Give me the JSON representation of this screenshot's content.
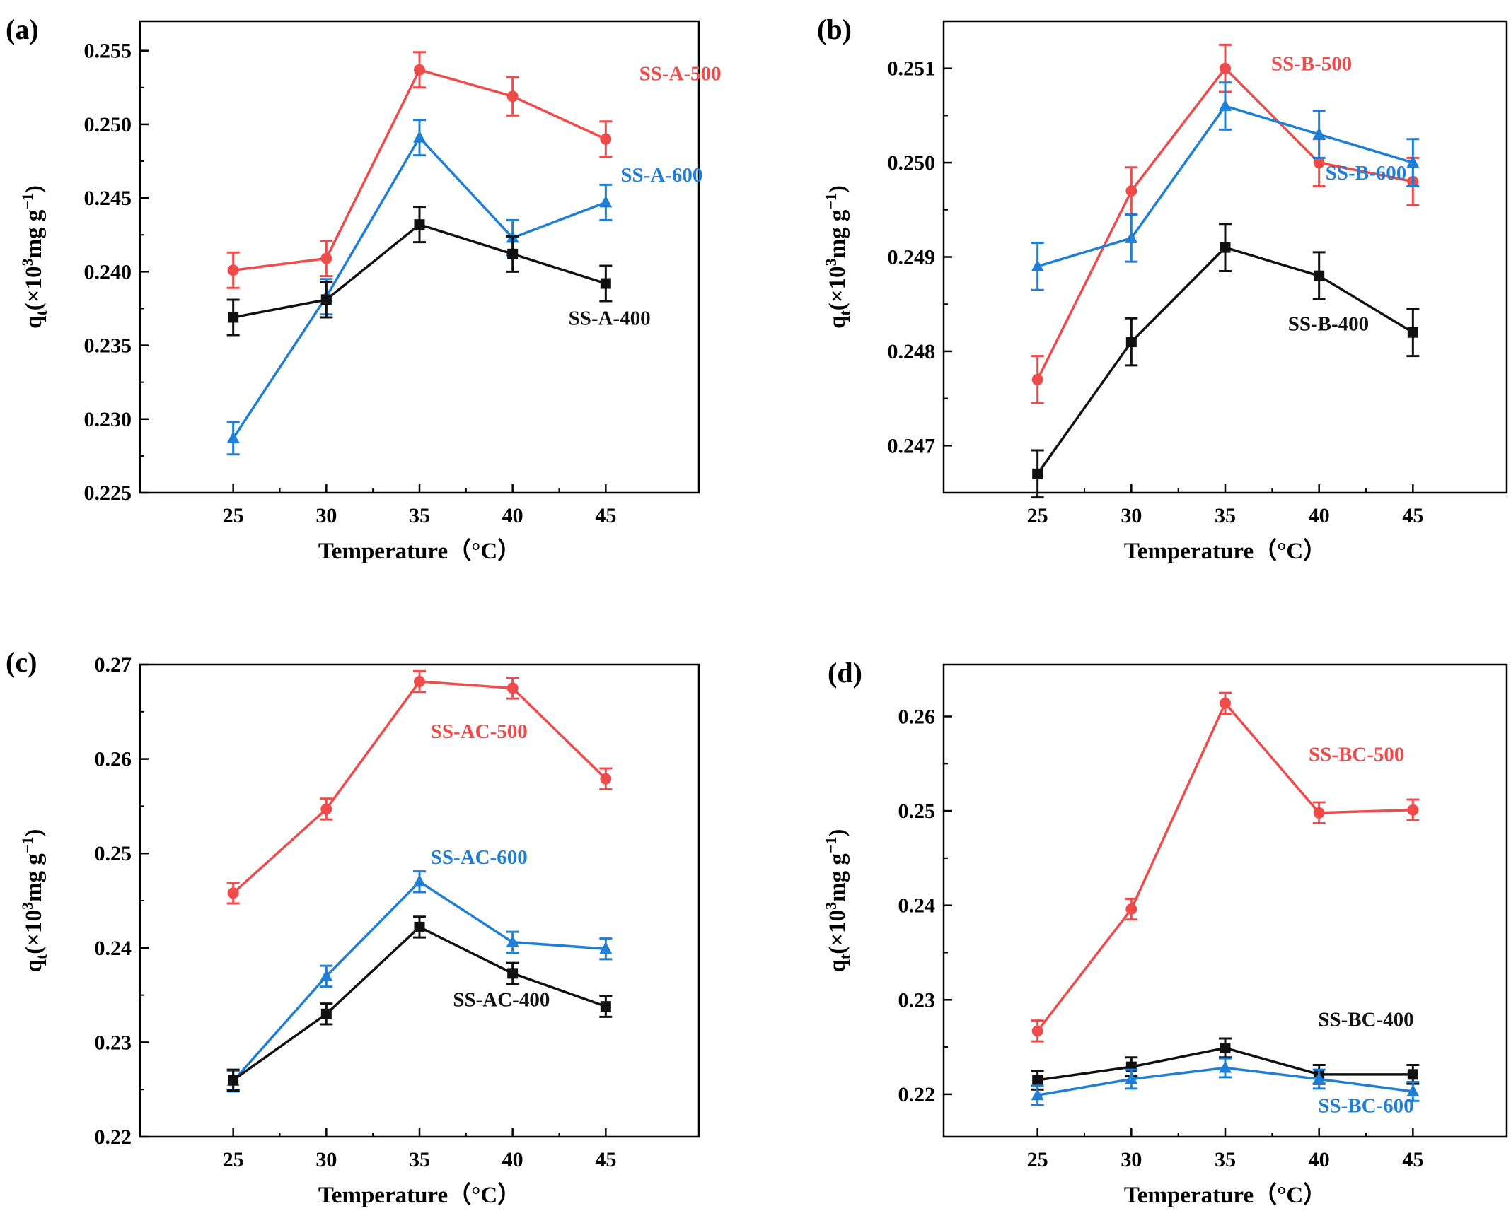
{
  "figure": {
    "type": "multi-panel line chart with error bars"
  },
  "colors": {
    "red": "#f04b4b",
    "blue": "#1f7fd6",
    "black": "#111111"
  },
  "chart_data": [
    {
      "panel": "(a)",
      "type": "line",
      "xlabel": "Temperature（°C）",
      "ylabel_main": "q",
      "ylabel_sub": "t",
      "ylabel_rest": "(×10",
      "ylabel_sup": "3",
      "ylabel_unit": "mg g",
      "ylabel_unit_sup": "−1",
      "ylabel_close": ")",
      "x": [
        25,
        30,
        35,
        40,
        45
      ],
      "xlim": [
        20,
        50
      ],
      "ylim": [
        0.225,
        0.257
      ],
      "yticks": [
        "0.225",
        "0.230",
        "0.235",
        "0.240",
        "0.245",
        "0.250",
        "0.255"
      ],
      "xticks": [
        "25",
        "30",
        "35",
        "40",
        "45"
      ],
      "series": [
        {
          "name": "SS-A-500",
          "color": "red",
          "marker": "circle",
          "values": [
            0.2401,
            0.2409,
            0.2537,
            0.2519,
            0.249
          ],
          "errors": [
            0.0012,
            0.0012,
            0.0012,
            0.0013,
            0.0012
          ],
          "label_at": [
            49.0,
            0.253
          ]
        },
        {
          "name": "SS-A-600",
          "color": "blue",
          "marker": "triangle",
          "values": [
            0.2287,
            0.2383,
            0.2491,
            0.2423,
            0.2447
          ],
          "errors": [
            0.0011,
            0.0012,
            0.0012,
            0.0012,
            0.0012
          ],
          "label_at": [
            48.0,
            0.2461
          ]
        },
        {
          "name": "SS-A-400",
          "color": "black",
          "marker": "square",
          "values": [
            0.2369,
            0.2381,
            0.2432,
            0.2412,
            0.2392
          ],
          "errors": [
            0.0012,
            0.0012,
            0.0012,
            0.0012,
            0.0012
          ],
          "label_at": [
            45.2,
            0.2364
          ]
        }
      ]
    },
    {
      "panel": "(b)",
      "type": "line",
      "xlabel": "Temperature（°C）",
      "ylabel_main": "q",
      "ylabel_sub": "t",
      "ylabel_rest": "(×10",
      "ylabel_sup": "3",
      "ylabel_unit": "mg g",
      "ylabel_unit_sup": "−1",
      "ylabel_close": ")",
      "x": [
        25,
        30,
        35,
        40,
        45
      ],
      "xlim": [
        20,
        50
      ],
      "ylim": [
        0.2465,
        0.2515
      ],
      "yticks": [
        "0.247",
        "0.248",
        "0.249",
        "0.250",
        "0.251"
      ],
      "xticks": [
        "25",
        "30",
        "35",
        "40",
        "45"
      ],
      "series": [
        {
          "name": "SS-B-500",
          "color": "red",
          "marker": "circle",
          "values": [
            0.2477,
            0.2497,
            0.251,
            0.25,
            0.2498
          ],
          "errors": [
            0.00025,
            0.00025,
            0.00025,
            0.00025,
            0.00025
          ],
          "label_at": [
            39.6,
            0.25098
          ]
        },
        {
          "name": "SS-B-600",
          "color": "blue",
          "marker": "triangle",
          "values": [
            0.2489,
            0.2492,
            0.2506,
            0.2503,
            0.25
          ],
          "errors": [
            0.00025,
            0.00025,
            0.00025,
            0.00025,
            0.00025
          ],
          "label_at": [
            42.5,
            0.24982
          ]
        },
        {
          "name": "SS-B-400",
          "color": "black",
          "marker": "square",
          "values": [
            0.2467,
            0.2481,
            0.2491,
            0.2488,
            0.2482
          ],
          "errors": [
            0.00025,
            0.00025,
            0.00025,
            0.00025,
            0.00025
          ],
          "label_at": [
            40.5,
            0.24822
          ]
        }
      ]
    },
    {
      "panel": "(c)",
      "type": "line",
      "xlabel": "Temperature（°C）",
      "ylabel_main": "q",
      "ylabel_sub": "t",
      "ylabel_rest": "(×10",
      "ylabel_sup": "3",
      "ylabel_unit": "mg g",
      "ylabel_unit_sup": "−1",
      "ylabel_close": ")",
      "x": [
        25,
        30,
        35,
        40,
        45
      ],
      "xlim": [
        20,
        50
      ],
      "ylim": [
        0.22,
        0.27
      ],
      "yticks": [
        "0.22",
        "0.23",
        "0.24",
        "0.25",
        "0.26",
        "0.27"
      ],
      "xticks": [
        "25",
        "30",
        "35",
        "40",
        "45"
      ],
      "series": [
        {
          "name": "SS-AC-500",
          "color": "red",
          "marker": "circle",
          "values": [
            0.2458,
            0.2547,
            0.2682,
            0.2675,
            0.2579
          ],
          "errors": [
            0.0011,
            0.0011,
            0.0011,
            0.0011,
            0.0011
          ],
          "label_at": [
            38.2,
            0.2622
          ]
        },
        {
          "name": "SS-AC-600",
          "color": "blue",
          "marker": "triangle",
          "values": [
            0.2259,
            0.237,
            0.247,
            0.2406,
            0.2399
          ],
          "errors": [
            0.0011,
            0.0011,
            0.0011,
            0.0011,
            0.0011
          ],
          "label_at": [
            38.2,
            0.2489
          ]
        },
        {
          "name": "SS-AC-400",
          "color": "black",
          "marker": "square",
          "values": [
            0.226,
            0.233,
            0.2422,
            0.2373,
            0.2338
          ],
          "errors": [
            0.0011,
            0.0011,
            0.0011,
            0.0011,
            0.0011
          ],
          "label_at": [
            39.4,
            0.2338
          ]
        }
      ]
    },
    {
      "panel": "(d)",
      "type": "line",
      "xlabel": "Temperature（°C）",
      "ylabel_main": "q",
      "ylabel_sub": "t",
      "ylabel_rest": "(×10",
      "ylabel_sup": "3",
      "ylabel_unit": "mg g",
      "ylabel_unit_sup": "−1",
      "ylabel_close": ")",
      "x": [
        25,
        30,
        35,
        40,
        45
      ],
      "xlim": [
        20,
        50
      ],
      "ylim": [
        0.2155,
        0.2655
      ],
      "yticks": [
        "0.22",
        "0.23",
        "0.24",
        "0.25",
        "0.26"
      ],
      "xticks": [
        "25",
        "30",
        "35",
        "40",
        "45"
      ],
      "series": [
        {
          "name": "SS-BC-500",
          "color": "red",
          "marker": "circle",
          "values": [
            0.2267,
            0.2396,
            0.2614,
            0.2498,
            0.2501
          ],
          "errors": [
            0.0011,
            0.0011,
            0.0011,
            0.0011,
            0.0011
          ],
          "label_at": [
            42.0,
            0.2553
          ]
        },
        {
          "name": "SS-BC-400",
          "color": "black",
          "marker": "square",
          "values": [
            0.2215,
            0.2229,
            0.2249,
            0.2221,
            0.2221
          ],
          "errors": [
            0.001,
            0.001,
            0.001,
            0.001,
            0.001
          ],
          "label_at": [
            42.5,
            0.2272
          ]
        },
        {
          "name": "SS-BC-600",
          "color": "blue",
          "marker": "triangle",
          "values": [
            0.2199,
            0.2216,
            0.2228,
            0.2216,
            0.2203
          ],
          "errors": [
            0.001,
            0.001,
            0.001,
            0.001,
            0.001
          ],
          "label_at": [
            42.5,
            0.2181
          ]
        }
      ]
    }
  ]
}
